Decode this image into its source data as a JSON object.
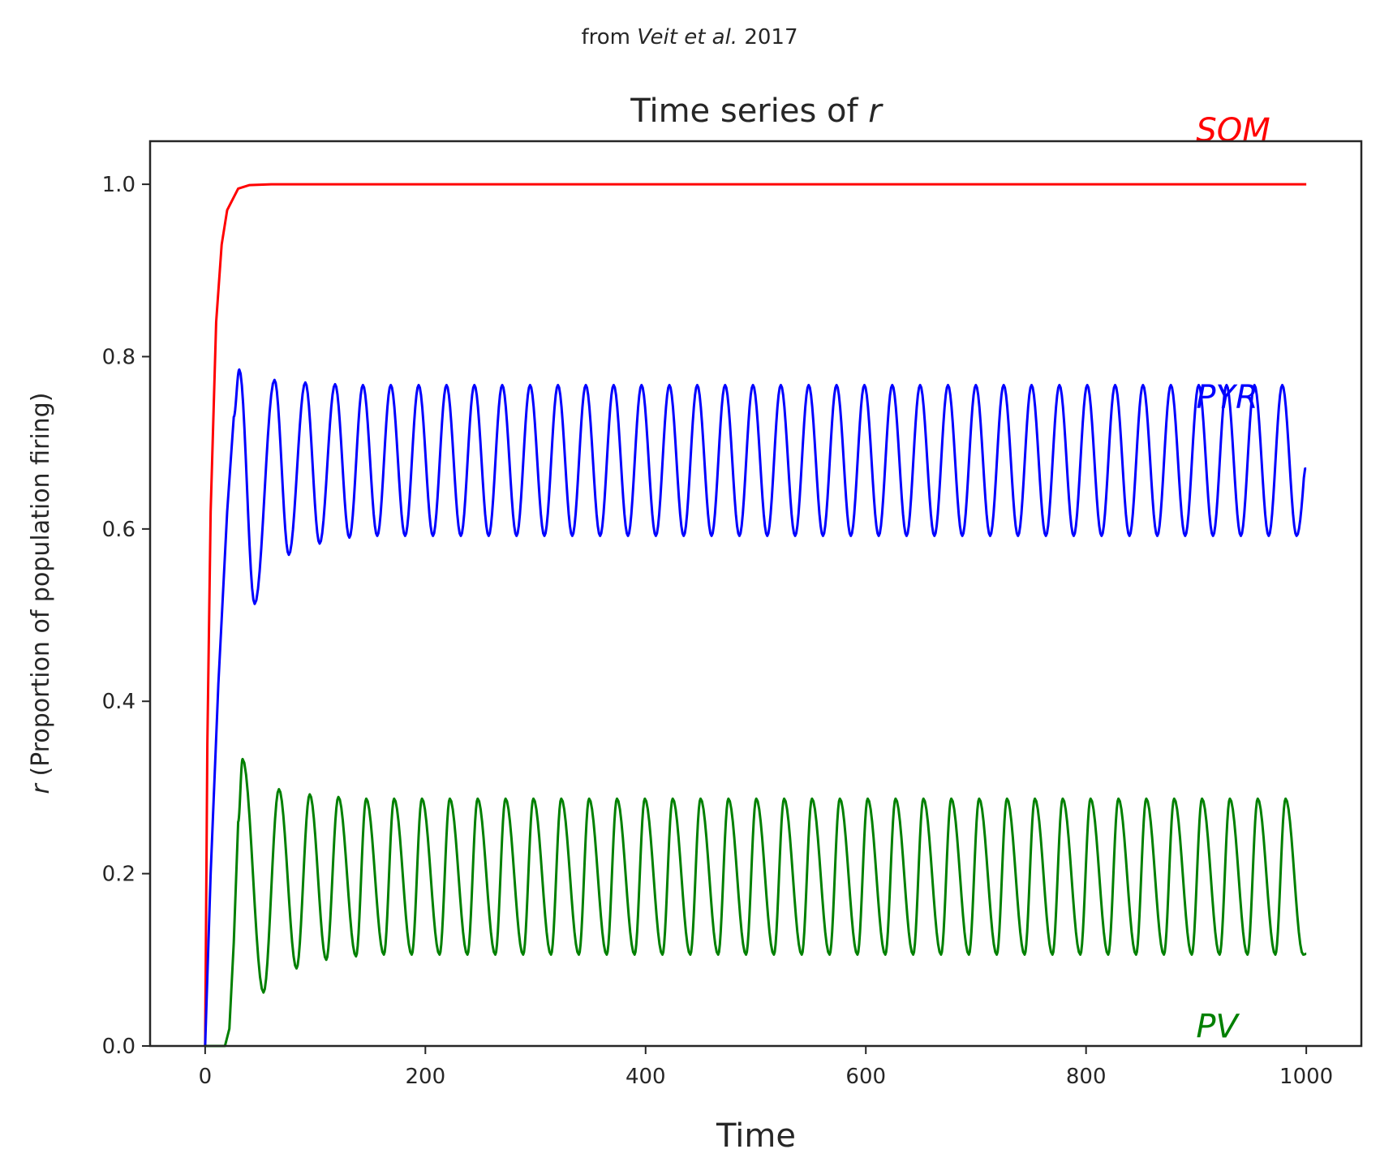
{
  "chart_data": {
    "type": "line",
    "supertitle_prefix": "from ",
    "supertitle_italic": "Veit et al.",
    "supertitle_suffix": " 2017",
    "title_prefix": "Time series of ",
    "title_var": "r",
    "xlabel": "Time",
    "ylabel_var": "r",
    "ylabel_rest": " (Proportion of population firing)",
    "xlim": [
      -50,
      1050
    ],
    "ylim": [
      0,
      1.05
    ],
    "xticks": [
      0,
      200,
      400,
      600,
      800,
      1000
    ],
    "xtick_labels": [
      "0",
      "200",
      "400",
      "600",
      "800",
      "1000"
    ],
    "yticks": [
      0,
      0.2,
      0.4,
      0.6,
      0.8,
      1.0
    ],
    "ytick_labels": [
      "0.0",
      "0.2",
      "0.4",
      "0.6",
      "0.8",
      "1.0"
    ],
    "grid": false,
    "series": [
      {
        "name": "SOM",
        "color": "#ff0000",
        "label_at": [
          900,
          1.05
        ],
        "description": "rapid saturating rise from 0 to 1.0 by t~50, then constant 1.0",
        "points": [
          [
            0,
            0
          ],
          [
            2,
            0.35
          ],
          [
            5,
            0.62
          ],
          [
            10,
            0.84
          ],
          [
            15,
            0.93
          ],
          [
            20,
            0.97
          ],
          [
            30,
            0.995
          ],
          [
            40,
            0.999
          ],
          [
            60,
            1.0
          ],
          [
            1000,
            1.0
          ]
        ]
      },
      {
        "name": "PYR",
        "color": "#0000ff",
        "label_at": [
          900,
          0.74
        ],
        "description": "sustained oscillation between ~0.59 and ~0.77, period ~25.3",
        "initial_peaks": [
          [
            31,
            0.785
          ],
          [
            63,
            0.773
          ],
          [
            91,
            0.77
          ],
          [
            118,
            0.768
          ]
        ],
        "initial_troughs": [
          [
            45,
            0.513
          ],
          [
            76,
            0.57
          ],
          [
            104,
            0.583
          ],
          [
            131,
            0.59
          ]
        ],
        "steady_peak": 0.767,
        "steady_trough": 0.592,
        "period": 25.3,
        "end_value": 0.67
      },
      {
        "name": "PV",
        "color": "#008000",
        "label_at": [
          900,
          0.01
        ],
        "description": "zero until t~18, then oscillation between ~0.105 and ~0.287, period ~25.3",
        "onset": 18,
        "initial_peaks": [
          [
            34,
            0.333
          ],
          [
            67,
            0.298
          ],
          [
            95,
            0.292
          ],
          [
            121,
            0.289
          ]
        ],
        "initial_troughs": [
          [
            53,
            0.062
          ],
          [
            83,
            0.09
          ],
          [
            110,
            0.1
          ],
          [
            137,
            0.104
          ]
        ],
        "steady_peak": 0.287,
        "steady_trough": 0.106,
        "period": 25.3,
        "end_value": 0.107
      }
    ]
  }
}
